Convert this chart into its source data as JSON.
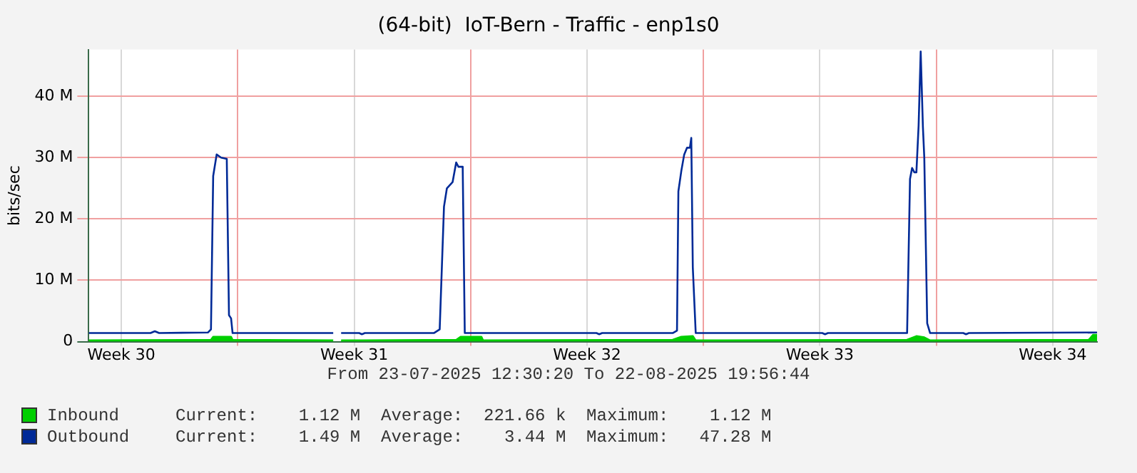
{
  "chart_data": {
    "type": "line",
    "title": "(64-bit)  IoT-Bern - Traffic - enp1s0",
    "ylabel": "bits/sec",
    "xlim": [
      "2025-07-23T12:30",
      "2025-08-22T19:56"
    ],
    "xticks": [
      {
        "value": "2025-07-24T12:00",
        "label": "Week 30"
      },
      {
        "value": "2025-07-28T00:00",
        "label": null
      },
      {
        "value": "2025-07-31T12:00",
        "label": "Week 31"
      },
      {
        "value": "2025-08-04T00:00",
        "label": null
      },
      {
        "value": "2025-08-07T12:00",
        "label": "Week 32"
      },
      {
        "value": "2025-08-11T00:00",
        "label": null
      },
      {
        "value": "2025-08-14T12:00",
        "label": "Week 33"
      },
      {
        "value": "2025-08-18T00:00",
        "label": null
      },
      {
        "value": "2025-08-21T12:00",
        "label": "Week 34"
      }
    ],
    "ylim": [
      0,
      47.6
    ],
    "yticks": [
      {
        "value": 0,
        "label": "0"
      },
      {
        "value": 10,
        "label": "10 M"
      },
      {
        "value": 20,
        "label": "20 M"
      },
      {
        "value": 30,
        "label": "30 M"
      },
      {
        "value": 40,
        "label": "40 M"
      }
    ],
    "grid": true,
    "legend": "bottom left",
    "marker": "none",
    "annotations": [
      "From 23-07-2025 12:30:20 To 22-08-2025 19:56:44",
      "Current:    1.12 M  Average:  221.66 k  Maximum:    1.12 M",
      "Current:    1.49 M  Average:    3.44 M  Maximum:   47.28 M"
    ],
    "series": [
      {
        "name": "Inbound",
        "type": "area",
        "color": "#00cf00",
        "x": [
          "2025-07-23T12:30",
          "2025-07-27T04:42",
          "2025-07-27T06:18",
          "2025-07-27T19:12",
          "2025-07-27T20:18",
          "2025-07-30T20:54",
          "2025-07-30T21:54",
          "2025-07-31T02:36",
          "2025-08-03T13:42",
          "2025-08-03T16:48",
          "2025-08-04T07:48",
          "2025-08-04T09:00",
          "2025-08-10T01:48",
          "2025-08-10T08:00",
          "2025-08-10T16:18",
          "2025-08-10T18:24",
          "2025-08-17T02:54",
          "2025-08-17T09:36",
          "2025-08-17T15:18",
          "2025-08-17T19:30",
          "2025-08-22T14:00",
          "2025-08-22T17:00",
          "2025-08-22T19:56"
        ],
        "values": [
          0.2,
          0.3,
          0.8,
          0.8,
          0.3,
          0.2,
          null,
          0.2,
          0.3,
          0.8,
          0.8,
          0.2,
          0.3,
          0.8,
          0.9,
          0.2,
          0.3,
          0.9,
          0.7,
          0.2,
          0.3,
          1.12,
          1.12
        ]
      },
      {
        "name": "Outbound",
        "color": "#002a97",
        "x": [
          "2025-07-23T12:30",
          "2025-07-25T09:06",
          "2025-07-25T12:12",
          "2025-07-25T15:18",
          "2025-07-27T02:36",
          "2025-07-27T04:42",
          "2025-07-27T06:18",
          "2025-07-27T08:48",
          "2025-07-27T12:00",
          "2025-07-27T16:06",
          "2025-07-27T17:42",
          "2025-07-27T19:12",
          "2025-07-27T20:18",
          "2025-07-30T20:54",
          "2025-07-30T21:54",
          "2025-07-31T02:36",
          "2025-07-31T15:36",
          "2025-07-31T17:36",
          "2025-07-31T19:42",
          "2025-08-02T21:30",
          "2025-08-03T01:42",
          "2025-08-03T04:48",
          "2025-08-03T06:54",
          "2025-08-03T11:00",
          "2025-08-03T13:36",
          "2025-08-03T15:12",
          "2025-08-03T18:18",
          "2025-08-03T19:48",
          "2025-08-07T18:48",
          "2025-08-07T20:48",
          "2025-08-07T22:54",
          "2025-08-10T01:48",
          "2025-08-10T04:54",
          "2025-08-10T05:54",
          "2025-08-10T08:00",
          "2025-08-10T10:06",
          "2025-08-10T12:06",
          "2025-08-10T14:12",
          "2025-08-10T15:12",
          "2025-08-10T16:18",
          "2025-08-10T18:24",
          "2025-08-14T13:42",
          "2025-08-14T15:42",
          "2025-08-14T17:48",
          "2025-08-17T02:54",
          "2025-08-17T05:00",
          "2025-08-17T06:30",
          "2025-08-17T08:06",
          "2025-08-17T09:36",
          "2025-08-17T11:12",
          "2025-08-17T12:42",
          "2025-08-17T14:18",
          "2025-08-17T15:18",
          "2025-08-17T17:24",
          "2025-08-17T19:30",
          "2025-08-18T19:24",
          "2025-08-18T21:24",
          "2025-08-18T23:30",
          "2025-08-22T19:56"
        ],
        "values": [
          1.4,
          1.4,
          1.7,
          1.4,
          1.5,
          2,
          27,
          30.5,
          30,
          29.8,
          4.3,
          3.8,
          1.4,
          1.4,
          null,
          1.4,
          1.4,
          1.2,
          1.4,
          1.4,
          2,
          22,
          25,
          26,
          29.2,
          28.5,
          28.5,
          1.4,
          1.4,
          1.2,
          1.4,
          1.4,
          1.8,
          24.5,
          27.8,
          30.5,
          31.6,
          31.6,
          33.2,
          12.1,
          1.4,
          1.4,
          1.2,
          1.4,
          1.4,
          26.5,
          28.3,
          27.6,
          27.6,
          35.2,
          47.28,
          35,
          30,
          3,
          1.4,
          1.4,
          1.2,
          1.4,
          1.49
        ]
      }
    ]
  }
}
